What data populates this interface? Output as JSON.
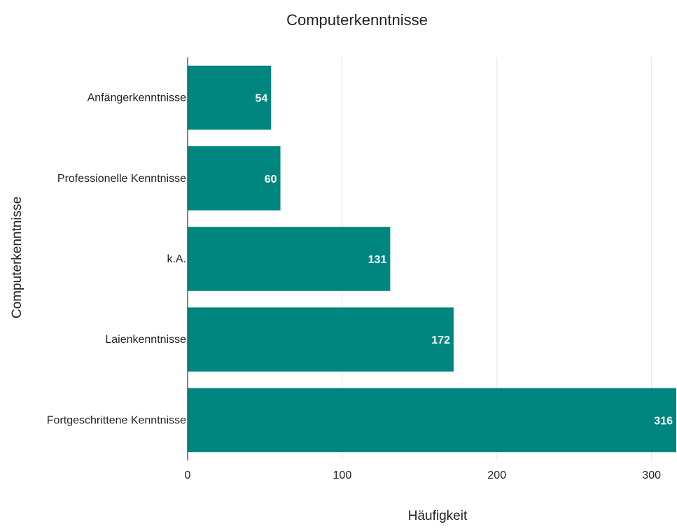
{
  "chart_data": {
    "type": "bar",
    "orientation": "horizontal",
    "title": "Computerkenntnisse",
    "xlabel": "Häufigkeit",
    "ylabel": "Computerkenntnisse",
    "categories": [
      "Anfängerkenntnisse",
      "Professionelle Kenntnisse",
      "k.A.",
      "Laienkenntnisse",
      "Fortgeschrittene Kenntnisse"
    ],
    "values": [
      54,
      60,
      131,
      172,
      316
    ],
    "data_labels": [
      "54",
      "60",
      "131",
      "172",
      "316"
    ],
    "xlim": [
      0,
      316
    ],
    "xticks": [
      0,
      100,
      200,
      300
    ],
    "xtick_labels": [
      "0",
      "100",
      "200",
      "300"
    ],
    "grid": true,
    "legend": "none",
    "bar_color": "#00857f"
  }
}
